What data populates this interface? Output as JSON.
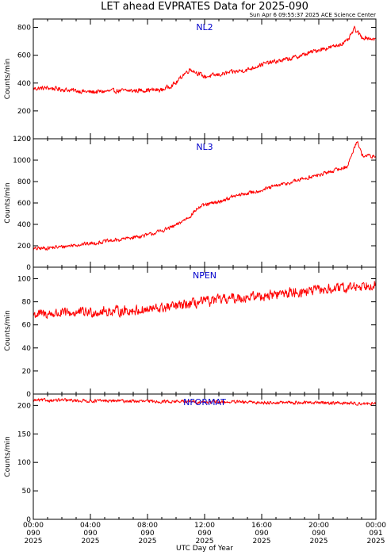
{
  "title": "LET ahead EVPRATES Data for 2025-090",
  "timestamp": "Sun Apr  6 09:55:37 2025 ACE Science Center",
  "xlabel": "UTC Day of Year",
  "colors": {
    "series": "#ff0000",
    "panel_label": "#0000cc",
    "axes": "#000000"
  },
  "chart_data": [
    {
      "type": "line",
      "name": "NL2",
      "ylabel": "Counts/min",
      "ylim": [
        0,
        860
      ],
      "yticks": [
        0,
        200,
        400,
        600,
        800
      ],
      "xlim": [
        "2025-090 00:00",
        "2025-091 00:00"
      ],
      "series": [
        {
          "x_hours": [
            0,
            1,
            2,
            3,
            4,
            5,
            6,
            7,
            8,
            9,
            10,
            10.5,
            11,
            12,
            13,
            14,
            15,
            16,
            17,
            18,
            19,
            20,
            21,
            22,
            22.5,
            23,
            24
          ],
          "values": [
            360,
            365,
            355,
            345,
            335,
            340,
            345,
            345,
            350,
            350,
            400,
            460,
            500,
            445,
            460,
            480,
            495,
            535,
            555,
            575,
            605,
            640,
            660,
            700,
            790,
            730,
            715
          ]
        }
      ]
    },
    {
      "type": "line",
      "name": "NL3",
      "ylabel": "Counts/min",
      "ylim": [
        0,
        1200
      ],
      "yticks": [
        0,
        200,
        400,
        600,
        800,
        1000,
        1200
      ],
      "xlim": [
        "2025-090 00:00",
        "2025-091 00:00"
      ],
      "series": [
        {
          "x_hours": [
            0,
            1,
            2,
            3,
            4,
            5,
            6,
            7,
            8,
            9,
            10,
            11,
            11.5,
            12,
            13,
            14,
            15,
            16,
            17,
            18,
            19,
            20,
            21,
            22,
            22.7,
            23,
            24
          ],
          "values": [
            170,
            180,
            190,
            210,
            220,
            240,
            255,
            280,
            300,
            340,
            390,
            480,
            550,
            580,
            610,
            660,
            690,
            720,
            760,
            790,
            830,
            860,
            900,
            940,
            1190,
            1050,
            1030
          ]
        }
      ]
    },
    {
      "type": "line",
      "name": "NPEN",
      "ylabel": "Counts/min",
      "ylim": [
        0,
        110
      ],
      "yticks": [
        0,
        20,
        40,
        60,
        80,
        100
      ],
      "xlim": [
        "2025-090 00:00",
        "2025-091 00:00"
      ],
      "series": [
        {
          "x_hours": [
            0,
            2,
            4,
            6,
            8,
            10,
            12,
            14,
            16,
            18,
            20,
            22,
            24
          ],
          "values": [
            69,
            70,
            71,
            72,
            73,
            76,
            80,
            83,
            85,
            88,
            90,
            92,
            96
          ]
        }
      ]
    },
    {
      "type": "line",
      "name": "NFORMAT",
      "ylabel": "Counts/min",
      "ylim": [
        0,
        220
      ],
      "yticks": [
        0,
        50,
        100,
        150,
        200
      ],
      "xlim": [
        "2025-090 00:00",
        "2025-091 00:00"
      ],
      "series": [
        {
          "x_hours": [
            0,
            2,
            4,
            6,
            8,
            10,
            12,
            14,
            16,
            18,
            20,
            22,
            24
          ],
          "values": [
            209,
            209,
            208,
            208,
            207,
            207,
            206,
            206,
            205,
            205,
            205,
            204,
            203
          ]
        }
      ]
    }
  ],
  "xticks": [
    {
      "time": "00:00",
      "day": "090",
      "year": "2025"
    },
    {
      "time": "04:00",
      "day": "090",
      "year": "2025"
    },
    {
      "time": "08:00",
      "day": "090",
      "year": "2025"
    },
    {
      "time": "12:00",
      "day": "090",
      "year": "2025"
    },
    {
      "time": "16:00",
      "day": "090",
      "year": "2025"
    },
    {
      "time": "20:00",
      "day": "090",
      "year": "2025"
    },
    {
      "time": "00:00",
      "day": "091",
      "year": "2025"
    }
  ],
  "noise_amplitude": [
    22,
    25,
    6,
    4
  ]
}
